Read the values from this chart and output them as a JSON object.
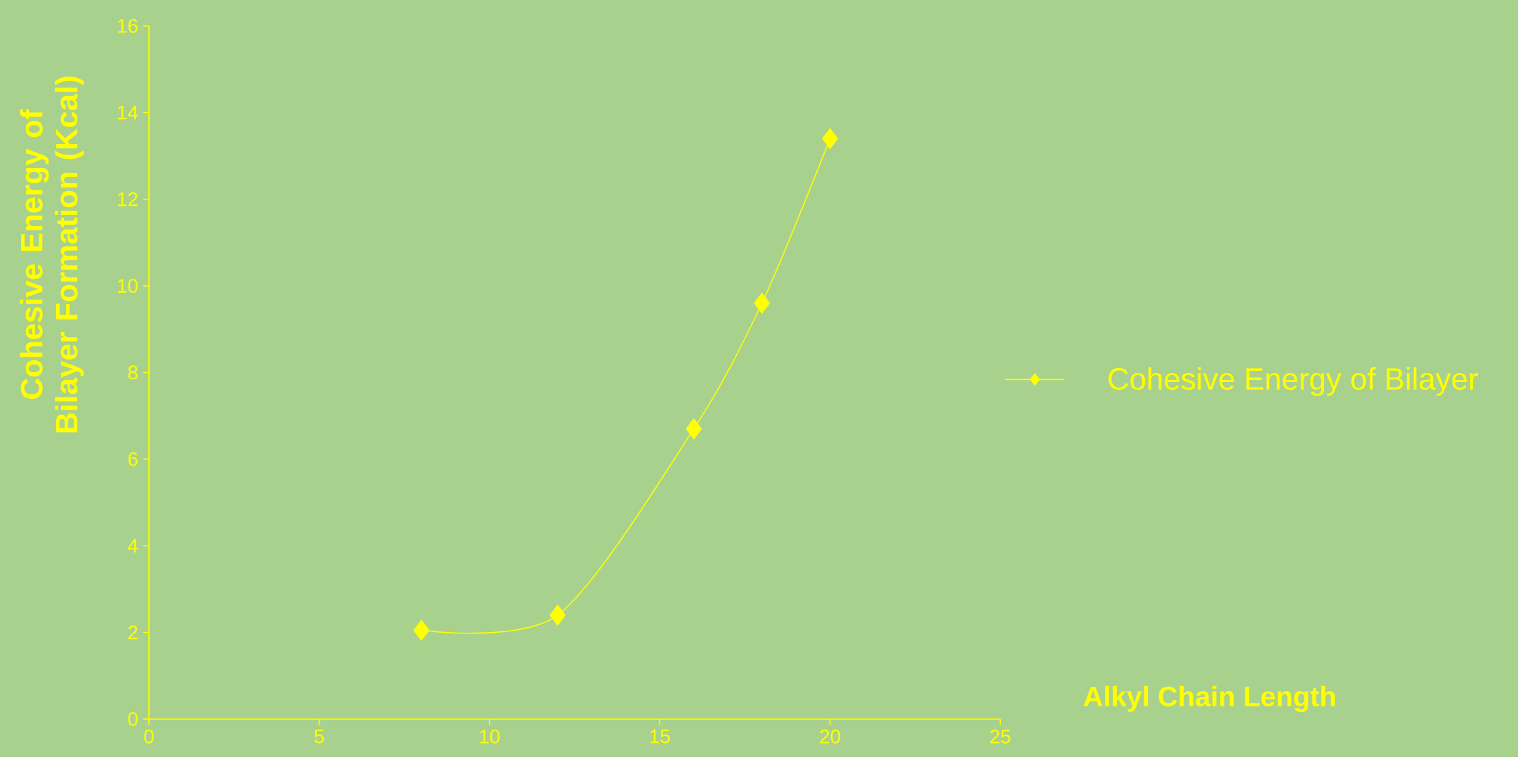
{
  "chart_data": {
    "type": "line",
    "xlabel": "Alkyl Chain Length",
    "ylabel": "Cohesive Energy of Bilayer Formation (Kcal)",
    "x": [
      8,
      12,
      16,
      18,
      20
    ],
    "series": [
      {
        "name": "Cohesive Energy of Bilayer",
        "color": "#ffff00",
        "values": [
          2.05,
          2.4,
          6.7,
          9.6,
          13.4
        ]
      }
    ],
    "xlim": [
      0,
      25
    ],
    "ylim": [
      0,
      16
    ],
    "xticks": [
      0,
      5,
      10,
      15,
      20,
      25
    ],
    "yticks": [
      0,
      2,
      4,
      6,
      8,
      10,
      12,
      14,
      16
    ],
    "marker": "diamond",
    "line_style": "solid",
    "legend": "right"
  }
}
